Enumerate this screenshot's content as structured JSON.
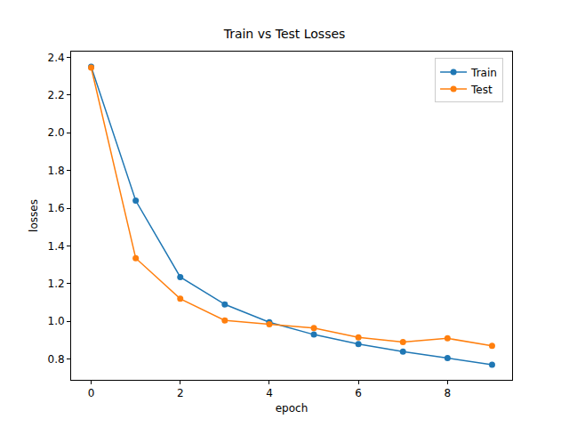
{
  "chart_data": {
    "type": "line",
    "title": "Train vs Test Losses",
    "x_label": "epoch",
    "y_label": "losses",
    "x": [
      0,
      1,
      2,
      3,
      4,
      5,
      6,
      7,
      8,
      9
    ],
    "series": [
      {
        "name": "Train",
        "color": "#1f77b4",
        "marker": "circle",
        "line_style": "solid",
        "values": [
          2.35,
          1.64,
          1.235,
          1.09,
          0.995,
          0.93,
          0.88,
          0.84,
          0.805,
          0.77
        ]
      },
      {
        "name": "Test",
        "color": "#ff7f0e",
        "marker": "circle",
        "line_style": "solid",
        "values": [
          2.345,
          1.335,
          1.12,
          1.005,
          0.985,
          0.965,
          0.915,
          0.89,
          0.91,
          0.87
        ]
      }
    ],
    "xlim": [
      -0.45,
      9.45
    ],
    "xticks": [
      0,
      2,
      4,
      6,
      8
    ],
    "ylim": [
      0.69,
      2.43
    ],
    "yticks": [
      0.8,
      {
        "value": 1,
        "label": "1.0"
      },
      1.2,
      1.4,
      1.6,
      1.8,
      {
        "value": 2,
        "label": "2.0"
      },
      2.2,
      2.4
    ],
    "grid": false,
    "legend": "upper right"
  }
}
